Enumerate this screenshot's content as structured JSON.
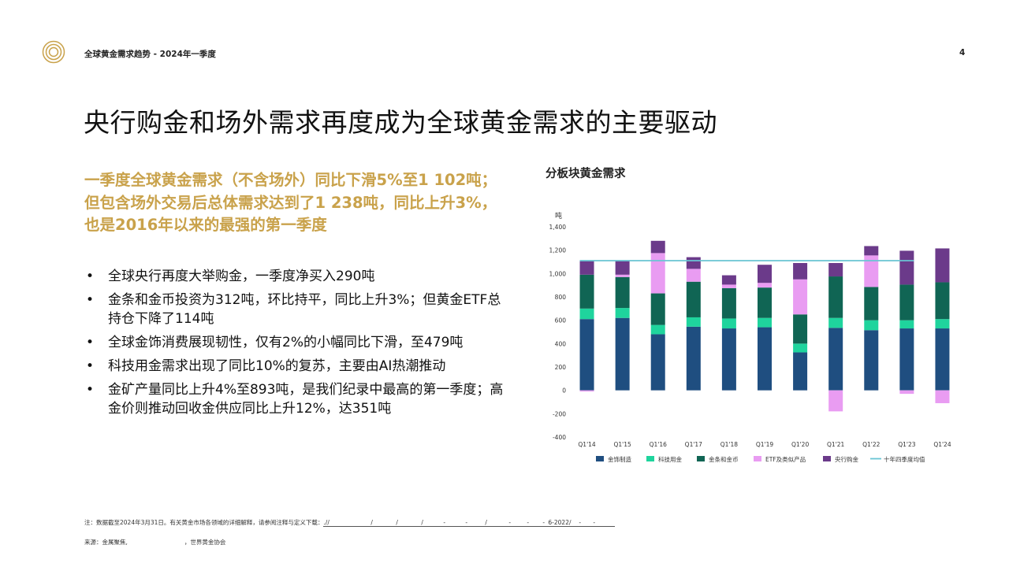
{
  "header": {
    "title": "全球黄金需求趋势 - 2024年一季度",
    "page_number": "4"
  },
  "slide": {
    "title": "央行购金和场外需求再度成为全球黄金需求的主要驱动",
    "lead": "一季度全球黄金需求（不含场外）同比下滑5%至1 102吨；但包含场外交易后总体需求达到了1 238吨，同比上升3%，也是2016年以来的最强的第一季度",
    "bullets": [
      "全球央行再度大举购金，一季度净买入290吨",
      "金条和金币投资为312吨，环比持平，同比上升3%；但黄金ETF总持仓下降了114吨",
      "全球金饰消费展现韧性，仅有2%的小幅同比下滑，至479吨",
      "科技用金需求出现了同比10%的复苏，主要由AI热潮推动",
      "金矿产量同比上升4%至893吨，是我们纪录中最高的第一季度；高金价则推动回收金供应同比上升12%，达351吨"
    ]
  },
  "chart_title": "分板块黄金需求",
  "chart_data": {
    "type": "bar",
    "stacked": true,
    "title": "分板块黄金需求",
    "ylabel": "吨",
    "ylim": [
      -400,
      1400
    ],
    "yticks": [
      -400,
      -200,
      0,
      200,
      400,
      600,
      800,
      1000,
      1200,
      1400
    ],
    "ytick_labels": [
      "-400",
      "-200",
      "0",
      "200",
      "400",
      "600",
      "800",
      "1,000",
      "1,200",
      "1,400"
    ],
    "categories": [
      "Q1'14",
      "Q1'15",
      "Q1'16",
      "Q1'17",
      "Q1'18",
      "Q1'19",
      "Q1'20",
      "Q1'21",
      "Q1'22",
      "Q1'23",
      "Q1'24"
    ],
    "series": [
      {
        "name": "金饰制造",
        "color": "#1f4e80",
        "values": [
          610,
          620,
          480,
          545,
          530,
          540,
          325,
          535,
          515,
          530,
          530
        ]
      },
      {
        "name": "科技用金",
        "color": "#1fd49d",
        "values": [
          90,
          85,
          80,
          80,
          85,
          80,
          75,
          85,
          85,
          70,
          80
        ]
      },
      {
        "name": "金条和金币",
        "color": "#106554",
        "values": [
          290,
          265,
          270,
          305,
          260,
          260,
          250,
          355,
          285,
          305,
          315
        ]
      },
      {
        "name": "ETF及类似产品",
        "color": "#e99cf2",
        "values": [
          -10,
          20,
          345,
          110,
          30,
          40,
          300,
          -180,
          270,
          -30,
          -110
        ]
      },
      {
        "name": "央行购金",
        "color": "#6b3a8a",
        "values": [
          120,
          120,
          105,
          100,
          80,
          155,
          140,
          115,
          80,
          290,
          290
        ]
      }
    ],
    "average_line": {
      "name": "十年四季度均值",
      "color": "#69c4d3",
      "value": 1110
    },
    "legend_position": "bottom",
    "grid": false
  },
  "footer": {
    "note": "注：数据截至2024年3月31日。有关黄金市场各领域的详细解释，请参阅注释与定义下载：",
    "link_fragments": [
      ".//",
      "/",
      "/",
      "/",
      "-",
      "-",
      "/",
      "-",
      "-",
      "-",
      "6-2022/",
      "-",
      "-"
    ],
    "source_prefix": "来源：金属聚焦,",
    "source_suffix": "，世界黄金协会"
  }
}
